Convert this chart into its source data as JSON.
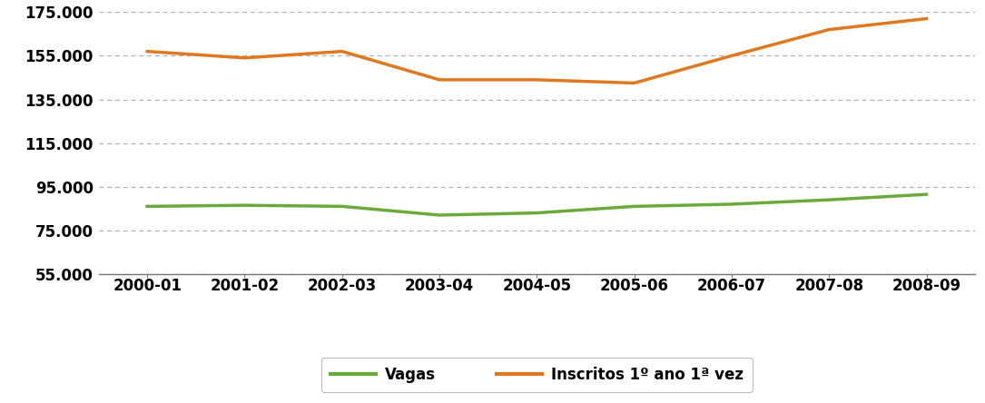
{
  "x_labels": [
    "2000-01",
    "2001-02",
    "2002-03",
    "2003-04",
    "2004-05",
    "2005-06",
    "2006-07",
    "2007-08",
    "2008-09"
  ],
  "vagas": [
    86000,
    86500,
    86000,
    82000,
    83000,
    86000,
    87000,
    89000,
    91500
  ],
  "inscritos": [
    157000,
    154000,
    157000,
    144000,
    144000,
    142500,
    155000,
    167000,
    172000
  ],
  "vagas_color": "#6aaa3a",
  "inscritos_color": "#e07820",
  "background_color": "#ffffff",
  "ylim": [
    55000,
    175000
  ],
  "yticks": [
    55000,
    75000,
    95000,
    115000,
    135000,
    155000,
    175000
  ],
  "ytick_labels": [
    "55.000",
    "75.000",
    "95.000",
    "115.000",
    "135.000",
    "155.000",
    "175.000"
  ],
  "legend_vagas": "Vagas",
  "legend_inscritos": "Inscritos 1º ano 1ª vez",
  "line_width": 2.5,
  "grid_color": "#b0b0b0",
  "font_size": 12,
  "font_family": "Arial"
}
